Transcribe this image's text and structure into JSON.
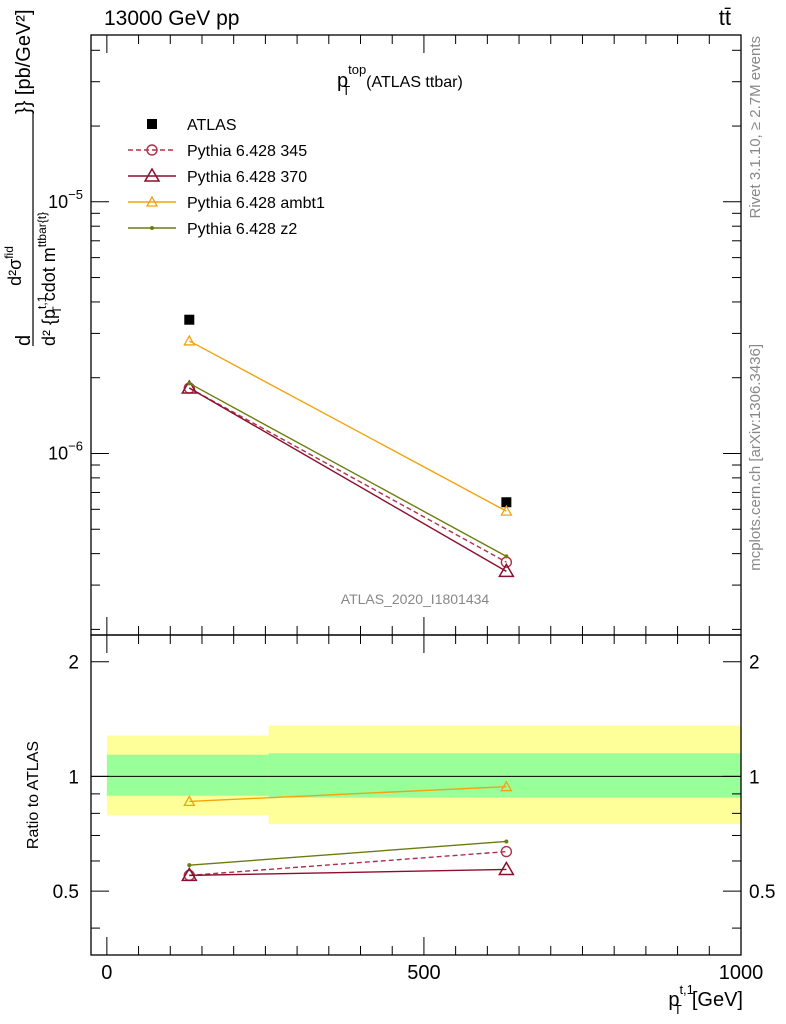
{
  "header": {
    "energy_label": "13000 GeV pp",
    "process_label": "tt̄"
  },
  "side_labels": {
    "rivet": "Rivet 3.1.10, ≥ 2.7M events",
    "mcplots": "mcplots.cern.ch [arXiv:1306.3436]"
  },
  "colors": {
    "atlas": "#000000",
    "p345": "#b0304a",
    "p370": "#8b0f2c",
    "ambt1": "#f2a30f",
    "z2": "#6b7d0e",
    "band_inner": "#99ff99",
    "band_outer": "#ffff99"
  },
  "chart_data": [
    {
      "panel": "main",
      "type": "line",
      "title_main": "p",
      "title_sup": "top",
      "title_sub": "T",
      "title_suffix": "(ATLAS ttbar)",
      "analysis_id": "ATLAS_2020_I1801434",
      "ylabel": {
        "lead": "d",
        "frac_num": "d²σ",
        "frac_num_sup": "fid",
        "frac_den": "d² {p",
        "frac_den_sup": "t,1",
        "frac_den_sub": "T",
        "frac_den_tail": " cdot m",
        "frac_den_tail_sup": "ttbar{t}",
        "tail": "}} [pb/GeV²]"
      },
      "yscale": "log",
      "xlim": [
        -25,
        1000
      ],
      "ylim": [
        1.9e-07,
        4.6e-05
      ],
      "y_tick_labels": [
        {
          "value": 1e-05,
          "base": "10",
          "exp": "−5"
        },
        {
          "value": 1e-06,
          "base": "10",
          "exp": "−6"
        }
      ],
      "legend_position": "top-left",
      "series": [
        {
          "name": "ATLAS",
          "style": "data",
          "x": [
            130,
            630
          ],
          "y": [
            3.4e-06,
            6.4e-07
          ]
        },
        {
          "name": "Pythia 6.428 345",
          "style": "circle-dashed",
          "x": [
            130,
            630
          ],
          "y": [
            1.82e-06,
            3.7e-07
          ]
        },
        {
          "name": "Pythia 6.428 370",
          "style": "triangle-large",
          "x": [
            130,
            630
          ],
          "y": [
            1.82e-06,
            3.4e-07
          ]
        },
        {
          "name": "Pythia 6.428 ambt1",
          "style": "triangle-small",
          "x": [
            130,
            630
          ],
          "y": [
            2.8e-06,
            5.9e-07
          ]
        },
        {
          "name": "Pythia 6.428 z2",
          "style": "dot",
          "x": [
            130,
            630
          ],
          "y": [
            1.9e-06,
            3.9e-07
          ]
        }
      ]
    },
    {
      "panel": "ratio",
      "type": "line",
      "ylabel": "Ratio to ATLAS",
      "xlabel_main": "p",
      "xlabel_sup": "t,1",
      "xlabel_sub": "T",
      "xlabel_unit": "[GeV]",
      "xlim": [
        -25,
        1000
      ],
      "ylim": [
        0.34,
        2.35
      ],
      "x_tick_labels": [
        "0",
        "500",
        "1000"
      ],
      "y_tick_labels": [
        "0.5",
        "1",
        "2"
      ],
      "bins": [
        {
          "x_low": 0,
          "x_high": 255,
          "inner": [
            0.89,
            1.14
          ],
          "outer": [
            0.79,
            1.28
          ]
        },
        {
          "x_low": 255,
          "x_high": 1000,
          "inner": [
            0.88,
            1.15
          ],
          "outer": [
            0.75,
            1.36
          ]
        }
      ],
      "series": [
        {
          "name": "Pythia 6.428 345",
          "style": "circle-dashed",
          "x": [
            130,
            630
          ],
          "y": [
            0.55,
            0.635
          ]
        },
        {
          "name": "Pythia 6.428 370",
          "style": "triangle-large",
          "x": [
            130,
            630
          ],
          "y": [
            0.55,
            0.57
          ]
        },
        {
          "name": "Pythia 6.428 ambt1",
          "style": "triangle-small",
          "x": [
            130,
            630
          ],
          "y": [
            0.86,
            0.94
          ]
        },
        {
          "name": "Pythia 6.428 z2",
          "style": "dot",
          "x": [
            130,
            630
          ],
          "y": [
            0.585,
            0.675
          ]
        }
      ]
    }
  ]
}
